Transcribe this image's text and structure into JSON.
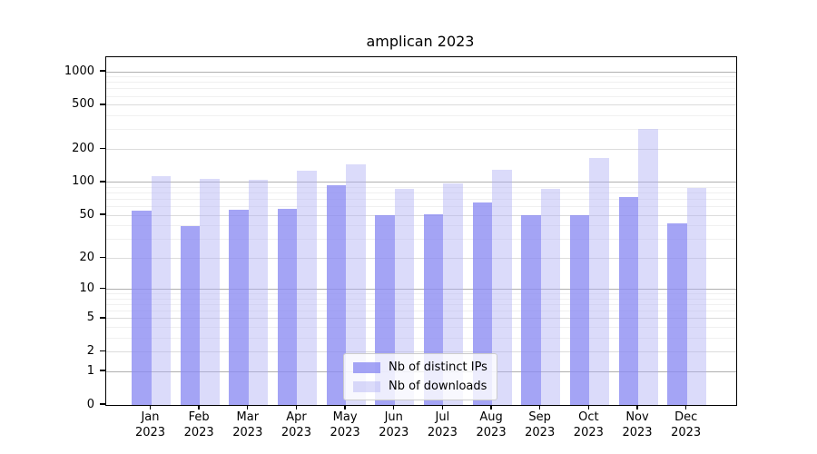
{
  "title": "amplican 2023",
  "chart_data": {
    "type": "bar",
    "title": "amplican 2023",
    "categories": [
      "Jan",
      "Feb",
      "Mar",
      "Apr",
      "May",
      "Jun",
      "Jul",
      "Aug",
      "Sep",
      "Oct",
      "Nov",
      "Dec"
    ],
    "year_label": "2023",
    "series": [
      {
        "name": "Nb of distinct IPs",
        "color": "rgba(138,138,242,0.78)",
        "values": [
          55,
          40,
          56,
          57,
          94,
          50,
          51,
          65,
          50,
          50,
          74,
          42
        ]
      },
      {
        "name": "Nb of downloads",
        "color": "rgba(175,175,245,0.45)",
        "values": [
          115,
          108,
          106,
          127,
          145,
          87,
          97,
          129,
          87,
          168,
          305,
          89
        ]
      }
    ],
    "xlabel": "",
    "ylabel": "",
    "yscale": "log1p",
    "yticks": [
      0,
      1,
      2,
      5,
      10,
      20,
      50,
      100,
      200,
      500,
      1000
    ],
    "ylim": [
      0,
      1350
    ],
    "grid": {
      "major": [
        1,
        10,
        100,
        1000
      ],
      "mid": [
        2,
        5,
        20,
        50,
        200,
        500
      ],
      "minor": [
        3,
        4,
        6,
        7,
        8,
        9,
        30,
        40,
        60,
        70,
        80,
        90,
        300,
        400,
        600,
        700,
        800,
        900
      ]
    },
    "legend_position": "lower-center"
  },
  "colors": {
    "bar_dark": "rgba(138,138,242,0.78)",
    "bar_light": "rgba(175,175,245,0.45)",
    "grid_major": "#b0b0b0",
    "grid_mid": "#dcdcdc",
    "grid_minor": "#f0f0f0",
    "axis": "#000000",
    "background": "#ffffff",
    "legend_border": "#cccccc"
  }
}
